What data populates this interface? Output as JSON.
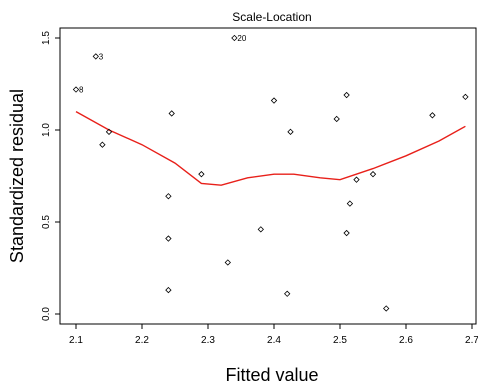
{
  "chart_data": {
    "type": "scatter",
    "title": "Scale-Location",
    "xlabel": "Fitted value",
    "ylabel": "Standardized residual",
    "xlim": [
      2.1,
      2.7
    ],
    "ylim": [
      0.0,
      1.5
    ],
    "x_ticks": [
      "2.1",
      "2.2",
      "2.3",
      "2.4",
      "2.5",
      "2.6",
      "2.7"
    ],
    "y_ticks": [
      "0.0",
      "0.5",
      "1.0",
      "1.5"
    ],
    "grid": false,
    "legend": "none",
    "points": [
      {
        "x": 2.1,
        "y": 1.22,
        "label": "8"
      },
      {
        "x": 2.13,
        "y": 1.4,
        "label": "3"
      },
      {
        "x": 2.14,
        "y": 0.92
      },
      {
        "x": 2.15,
        "y": 0.99
      },
      {
        "x": 2.24,
        "y": 0.64
      },
      {
        "x": 2.24,
        "y": 0.41
      },
      {
        "x": 2.24,
        "y": 0.13
      },
      {
        "x": 2.245,
        "y": 1.09
      },
      {
        "x": 2.29,
        "y": 0.76
      },
      {
        "x": 2.33,
        "y": 0.28
      },
      {
        "x": 2.34,
        "y": 1.5,
        "label": "20"
      },
      {
        "x": 2.38,
        "y": 0.46
      },
      {
        "x": 2.4,
        "y": 1.16
      },
      {
        "x": 2.42,
        "y": 0.11
      },
      {
        "x": 2.425,
        "y": 0.99
      },
      {
        "x": 2.495,
        "y": 1.06
      },
      {
        "x": 2.51,
        "y": 1.19
      },
      {
        "x": 2.51,
        "y": 0.44
      },
      {
        "x": 2.515,
        "y": 0.6
      },
      {
        "x": 2.525,
        "y": 0.73
      },
      {
        "x": 2.55,
        "y": 0.76
      },
      {
        "x": 2.57,
        "y": 0.03
      },
      {
        "x": 2.64,
        "y": 1.08
      },
      {
        "x": 2.69,
        "y": 1.18
      }
    ],
    "smoother": {
      "color": "#e8201a",
      "x": [
        2.1,
        2.15,
        2.2,
        2.25,
        2.29,
        2.32,
        2.36,
        2.4,
        2.43,
        2.47,
        2.5,
        2.55,
        2.6,
        2.65,
        2.69
      ],
      "y": [
        1.1,
        1.0,
        0.92,
        0.82,
        0.71,
        0.7,
        0.74,
        0.76,
        0.76,
        0.74,
        0.73,
        0.79,
        0.86,
        0.94,
        1.02
      ]
    }
  }
}
